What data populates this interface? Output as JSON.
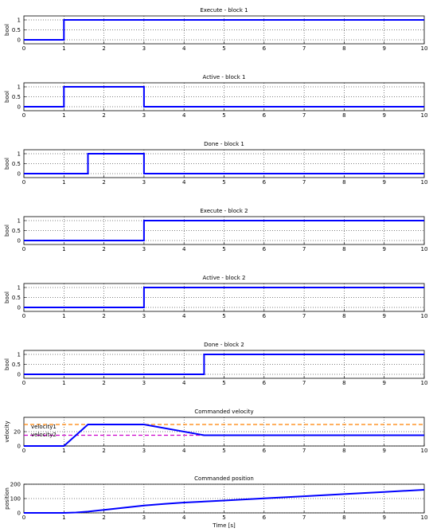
{
  "chart_data": [
    {
      "type": "line",
      "title": "Execute - block 1",
      "xlabel": "",
      "ylabel": "bool",
      "xlim": [
        0,
        10
      ],
      "ylim": [
        -0.2,
        1.2
      ],
      "xticks": [
        "0",
        "1",
        "2",
        "3",
        "4",
        "5",
        "6",
        "7",
        "8",
        "9",
        "10"
      ],
      "yticks": [
        "0",
        "0.5",
        "1"
      ],
      "grid": true,
      "series": [
        {
          "x": [
            0,
            1,
            1,
            10
          ],
          "y": [
            0,
            0,
            1,
            1
          ],
          "color": "#0000ff"
        }
      ]
    },
    {
      "type": "line",
      "title": "Active - block 1",
      "xlabel": "",
      "ylabel": "bool",
      "xlim": [
        0,
        10
      ],
      "ylim": [
        -0.2,
        1.2
      ],
      "xticks": [
        "0",
        "1",
        "2",
        "3",
        "4",
        "5",
        "6",
        "7",
        "8",
        "9",
        "10"
      ],
      "yticks": [
        "0",
        "0.5",
        "1"
      ],
      "grid": true,
      "series": [
        {
          "x": [
            0,
            1,
            1,
            3,
            3,
            10
          ],
          "y": [
            0,
            0,
            1,
            1,
            0,
            0
          ],
          "color": "#0000ff"
        }
      ]
    },
    {
      "type": "line",
      "title": "Done - block 1",
      "xlabel": "",
      "ylabel": "bool",
      "xlim": [
        0,
        10
      ],
      "ylim": [
        -0.2,
        1.2
      ],
      "xticks": [
        "0",
        "1",
        "2",
        "3",
        "4",
        "5",
        "6",
        "7",
        "8",
        "9",
        "10"
      ],
      "yticks": [
        "0",
        "0.5",
        "1"
      ],
      "grid": true,
      "series": [
        {
          "x": [
            0,
            1.6,
            1.6,
            3,
            3,
            10
          ],
          "y": [
            0,
            0,
            1,
            1,
            0,
            0
          ],
          "color": "#0000ff"
        }
      ]
    },
    {
      "type": "line",
      "title": "Execute - block 2",
      "xlabel": "",
      "ylabel": "bool",
      "xlim": [
        0,
        10
      ],
      "ylim": [
        -0.2,
        1.2
      ],
      "xticks": [
        "0",
        "1",
        "2",
        "3",
        "4",
        "5",
        "6",
        "7",
        "8",
        "9",
        "10"
      ],
      "yticks": [
        "0",
        "0.5",
        "1"
      ],
      "grid": true,
      "series": [
        {
          "x": [
            0,
            3,
            3,
            10
          ],
          "y": [
            0,
            0,
            1,
            1
          ],
          "color": "#0000ff"
        }
      ]
    },
    {
      "type": "line",
      "title": "Active - block 2",
      "xlabel": "",
      "ylabel": "bool",
      "xlim": [
        0,
        10
      ],
      "ylim": [
        -0.2,
        1.2
      ],
      "xticks": [
        "0",
        "1",
        "2",
        "3",
        "4",
        "5",
        "6",
        "7",
        "8",
        "9",
        "10"
      ],
      "yticks": [
        "0",
        "0.5",
        "1"
      ],
      "grid": true,
      "series": [
        {
          "x": [
            0,
            3,
            3,
            10
          ],
          "y": [
            0,
            0,
            1,
            1
          ],
          "color": "#0000ff"
        }
      ]
    },
    {
      "type": "line",
      "title": "Done - block 2",
      "xlabel": "",
      "ylabel": "bool",
      "xlim": [
        0,
        10
      ],
      "ylim": [
        -0.2,
        1.2
      ],
      "xticks": [
        "0",
        "1",
        "2",
        "3",
        "4",
        "5",
        "6",
        "7",
        "8",
        "9",
        "10"
      ],
      "yticks": [
        "0",
        "0.5",
        "1"
      ],
      "grid": true,
      "series": [
        {
          "x": [
            0,
            4.5,
            4.5,
            10
          ],
          "y": [
            0,
            0,
            1,
            1
          ],
          "color": "#0000ff"
        }
      ]
    },
    {
      "type": "line",
      "title": "Commanded velocity",
      "xlabel": "",
      "ylabel": "velocity",
      "xlim": [
        0,
        10
      ],
      "ylim": [
        0,
        40
      ],
      "xticks": [
        "0",
        "1",
        "2",
        "3",
        "4",
        "5",
        "6",
        "7",
        "8",
        "9",
        "10"
      ],
      "yticks": [
        "0",
        "20"
      ],
      "grid": true,
      "series": [
        {
          "name": "velocity1",
          "x": [
            0,
            10
          ],
          "y": [
            30,
            30
          ],
          "color": "#ff8000",
          "dash": "5,3"
        },
        {
          "name": "velocity2",
          "x": [
            0,
            10
          ],
          "y": [
            15,
            15
          ],
          "color": "#cc00cc",
          "dash": "5,3"
        },
        {
          "x": [
            0,
            1,
            1.6,
            3,
            4.5,
            10
          ],
          "y": [
            0,
            0,
            30,
            30,
            15,
            15
          ],
          "color": "#0000ff"
        }
      ],
      "annotations": [
        "velocity1",
        "velocity2"
      ]
    },
    {
      "type": "line",
      "title": "Commanded position",
      "xlabel": "Time [s]",
      "ylabel": "position",
      "xlim": [
        0,
        10
      ],
      "ylim": [
        0,
        200
      ],
      "xticks": [
        "0",
        "1",
        "2",
        "3",
        "4",
        "5",
        "6",
        "7",
        "8",
        "9",
        "10"
      ],
      "yticks": [
        "0",
        "100",
        "200"
      ],
      "grid": true,
      "series": [
        {
          "x": [
            0,
            1,
            1.3,
            1.6,
            2,
            2.5,
            3,
            3.5,
            4,
            4.5,
            5,
            6,
            7,
            8,
            9,
            10
          ],
          "y": [
            0,
            0,
            3,
            9,
            21,
            36,
            51,
            63,
            72,
            79,
            86,
            101,
            116,
            131,
            146,
            161
          ],
          "color": "#0000ff"
        }
      ]
    }
  ]
}
